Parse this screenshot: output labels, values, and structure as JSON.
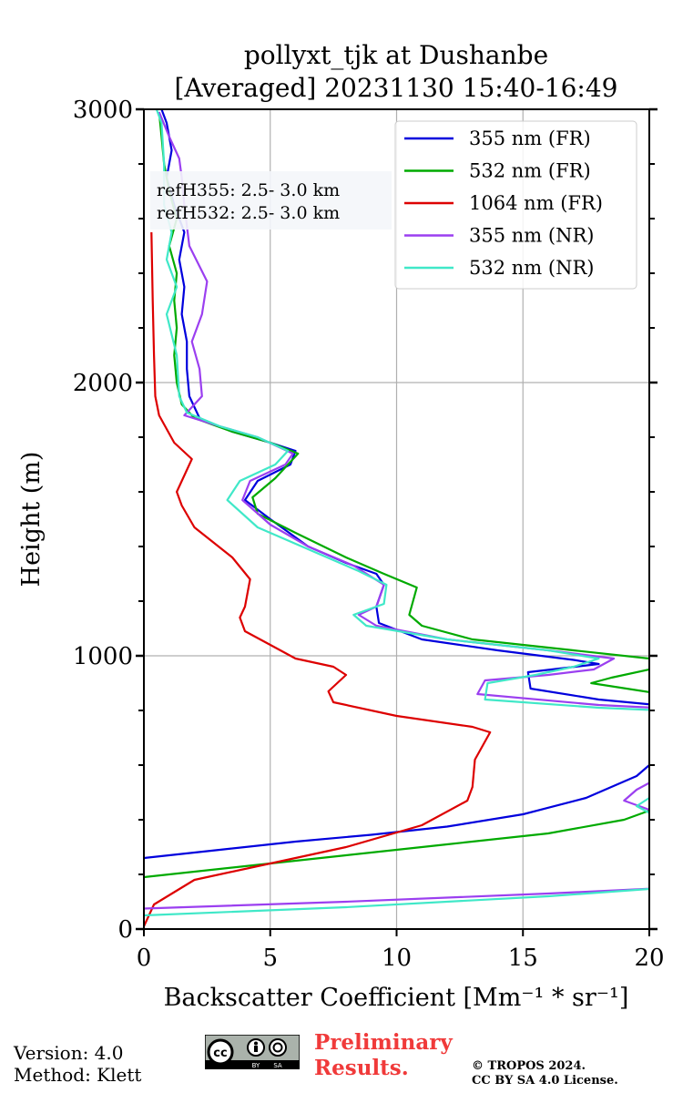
{
  "chart_data": {
    "type": "line",
    "title": [
      "pollyxt_tjk at Dushanbe",
      "[Averaged] 20231130 15:40-16:49"
    ],
    "xlabel": "Backscatter Coefficient [Mm⁻¹ * sr⁻¹]",
    "ylabel": "Height (m)",
    "xlim": [
      0,
      20
    ],
    "ylim": [
      0,
      3000
    ],
    "xticks": [
      0,
      5,
      10,
      15,
      20
    ],
    "xtick_labels": [
      "0",
      "5",
      "10",
      "15",
      "20"
    ],
    "yticks": [
      0,
      1000,
      2000,
      3000
    ],
    "ytick_labels": [
      "0",
      "1000",
      "2000",
      "3000"
    ],
    "grid": true,
    "legend_position": "top-right",
    "annotations": [
      "refH355:  2.5- 3.0 km",
      "refH532:  2.5- 3.0 km"
    ],
    "series": [
      {
        "name": "355 nm (FR)",
        "color": "#0000dd",
        "points": [
          [
            0.0,
            260
          ],
          [
            3,
            290
          ],
          [
            6,
            320
          ],
          [
            9,
            345
          ],
          [
            12,
            375
          ],
          [
            15,
            420
          ],
          [
            17.5,
            480
          ],
          [
            19.5,
            560
          ],
          [
            20,
            600
          ],
          [
            20.5,
            640
          ],
          [
            20.3,
            820
          ],
          [
            18,
            840
          ],
          [
            15.3,
            880
          ],
          [
            15.2,
            940
          ],
          [
            18,
            970
          ],
          [
            17,
            985
          ],
          [
            14,
            1020
          ],
          [
            11,
            1060
          ],
          [
            9.3,
            1120
          ],
          [
            9.2,
            1180
          ],
          [
            9.5,
            1260
          ],
          [
            9.2,
            1300
          ],
          [
            8,
            1340
          ],
          [
            6.5,
            1400
          ],
          [
            5,
            1500
          ],
          [
            4,
            1570
          ],
          [
            4.5,
            1640
          ],
          [
            5.8,
            1700
          ],
          [
            6,
            1750
          ],
          [
            5,
            1780
          ],
          [
            3.5,
            1820
          ],
          [
            2.2,
            1870
          ],
          [
            1.8,
            1950
          ],
          [
            1.7,
            2050
          ],
          [
            1.7,
            2150
          ],
          [
            1.5,
            2250
          ],
          [
            1.6,
            2350
          ],
          [
            1.4,
            2450
          ],
          [
            1.6,
            2550
          ],
          [
            1.2,
            2650
          ],
          [
            0.9,
            2750
          ],
          [
            1.1,
            2850
          ],
          [
            0.9,
            2950
          ],
          [
            0.7,
            3000
          ]
        ]
      },
      {
        "name": "532 nm (FR)",
        "color": "#00aa00",
        "points": [
          [
            0.0,
            190
          ],
          [
            4,
            230
          ],
          [
            8,
            270
          ],
          [
            12,
            310
          ],
          [
            16,
            350
          ],
          [
            19,
            400
          ],
          [
            20.5,
            450
          ],
          [
            20.5,
            860
          ],
          [
            17.7,
            900
          ],
          [
            18.5,
            920
          ],
          [
            20.5,
            960
          ],
          [
            20,
            990
          ],
          [
            17,
            1020
          ],
          [
            13,
            1060
          ],
          [
            11,
            1110
          ],
          [
            10.5,
            1150
          ],
          [
            10.8,
            1250
          ],
          [
            9.5,
            1300
          ],
          [
            8,
            1360
          ],
          [
            6,
            1450
          ],
          [
            4.5,
            1520
          ],
          [
            4.3,
            1580
          ],
          [
            5.2,
            1650
          ],
          [
            6.1,
            1740
          ],
          [
            5,
            1780
          ],
          [
            3.5,
            1820
          ],
          [
            2,
            1870
          ],
          [
            1.5,
            1920
          ],
          [
            1.3,
            2000
          ],
          [
            1.2,
            2100
          ],
          [
            1.3,
            2200
          ],
          [
            1.2,
            2300
          ],
          [
            1.3,
            2400
          ],
          [
            1.0,
            2500
          ],
          [
            1.3,
            2600
          ],
          [
            1.0,
            2700
          ],
          [
            0.8,
            2800
          ],
          [
            0.7,
            2900
          ],
          [
            0.6,
            2990
          ]
        ]
      },
      {
        "name": "1064 nm (FR)",
        "color": "#dd0000",
        "points": [
          [
            0.0,
            10
          ],
          [
            0.4,
            90
          ],
          [
            2,
            180
          ],
          [
            5,
            240
          ],
          [
            8,
            300
          ],
          [
            11,
            380
          ],
          [
            12.8,
            470
          ],
          [
            13,
            520
          ],
          [
            13.1,
            620
          ],
          [
            13.7,
            720
          ],
          [
            13,
            740
          ],
          [
            10,
            780
          ],
          [
            7.5,
            830
          ],
          [
            7.3,
            870
          ],
          [
            8,
            930
          ],
          [
            7.5,
            960
          ],
          [
            6,
            990
          ],
          [
            5,
            1040
          ],
          [
            4,
            1090
          ],
          [
            3.8,
            1140
          ],
          [
            4,
            1180
          ],
          [
            4.2,
            1280
          ],
          [
            3.5,
            1360
          ],
          [
            2,
            1470
          ],
          [
            1.5,
            1550
          ],
          [
            1.3,
            1600
          ],
          [
            1.9,
            1720
          ],
          [
            1.2,
            1780
          ],
          [
            0.6,
            1880
          ],
          [
            0.45,
            1950
          ],
          [
            0.4,
            2100
          ],
          [
            0.35,
            2300
          ],
          [
            0.3,
            2550
          ]
        ]
      },
      {
        "name": "355 nm (NR)",
        "color": "#9b3ff0",
        "points": [
          [
            0.0,
            75
          ],
          [
            8,
            100
          ],
          [
            16,
            130
          ],
          [
            20.5,
            150
          ],
          [
            20.5,
            420
          ],
          [
            19,
            470
          ],
          [
            19.5,
            510
          ],
          [
            20.5,
            560
          ],
          [
            20.5,
            640
          ],
          [
            20,
            670
          ],
          [
            20.2,
            810
          ],
          [
            18,
            820
          ],
          [
            13.2,
            860
          ],
          [
            13.5,
            910
          ],
          [
            16,
            930
          ],
          [
            17.8,
            950
          ],
          [
            18.6,
            990
          ],
          [
            16,
            1020
          ],
          [
            12,
            1060
          ],
          [
            9.2,
            1110
          ],
          [
            8.5,
            1150
          ],
          [
            9.2,
            1180
          ],
          [
            9.5,
            1260
          ],
          [
            8.3,
            1330
          ],
          [
            6.5,
            1400
          ],
          [
            5,
            1480
          ],
          [
            3.9,
            1570
          ],
          [
            4.2,
            1640
          ],
          [
            5.6,
            1700
          ],
          [
            5.9,
            1740
          ],
          [
            4.5,
            1800
          ],
          [
            3,
            1840
          ],
          [
            1.6,
            1880
          ],
          [
            2.3,
            1950
          ],
          [
            2.2,
            2050
          ],
          [
            1.9,
            2150
          ],
          [
            2.3,
            2250
          ],
          [
            2.5,
            2370
          ],
          [
            1.8,
            2500
          ],
          [
            1.6,
            2650
          ],
          [
            1.5,
            2750
          ],
          [
            1.4,
            2820
          ],
          [
            1.0,
            2900
          ],
          [
            0.6,
            2990
          ]
        ]
      },
      {
        "name": "532 nm (NR)",
        "color": "#40e8c8",
        "points": [
          [
            0.0,
            50
          ],
          [
            8,
            80
          ],
          [
            16,
            120
          ],
          [
            20.5,
            150
          ],
          [
            20.5,
            400
          ],
          [
            19.5,
            450
          ],
          [
            20.5,
            510
          ],
          [
            20.5,
            800
          ],
          [
            18,
            810
          ],
          [
            13.5,
            840
          ],
          [
            13.6,
            900
          ],
          [
            15.5,
            930
          ],
          [
            17,
            960
          ],
          [
            18,
            990
          ],
          [
            16,
            1020
          ],
          [
            12,
            1060
          ],
          [
            8.8,
            1110
          ],
          [
            8.3,
            1150
          ],
          [
            9.5,
            1190
          ],
          [
            9.6,
            1260
          ],
          [
            8.5,
            1310
          ],
          [
            6.5,
            1390
          ],
          [
            4.5,
            1470
          ],
          [
            3.3,
            1570
          ],
          [
            3.8,
            1640
          ],
          [
            5.2,
            1700
          ],
          [
            5.7,
            1750
          ],
          [
            4.5,
            1800
          ],
          [
            3,
            1840
          ],
          [
            1.7,
            1890
          ],
          [
            1.4,
            1950
          ],
          [
            1.3,
            2100
          ],
          [
            0.9,
            2250
          ],
          [
            1.3,
            2350
          ],
          [
            0.9,
            2450
          ],
          [
            1.1,
            2550
          ],
          [
            0.8,
            2650
          ],
          [
            0.8,
            2800
          ],
          [
            0.7,
            2950
          ],
          [
            0.5,
            3000
          ]
        ]
      }
    ]
  },
  "footer": {
    "version": "Version: 4.0",
    "method": "Method: Klett",
    "preliminary_line1": "Preliminary",
    "preliminary_line2": "Results.",
    "copyright_line1": "© TROPOS 2024.",
    "copyright_line2": "CC BY SA 4.0 License.",
    "license_badge_text": "cc BY SA"
  }
}
